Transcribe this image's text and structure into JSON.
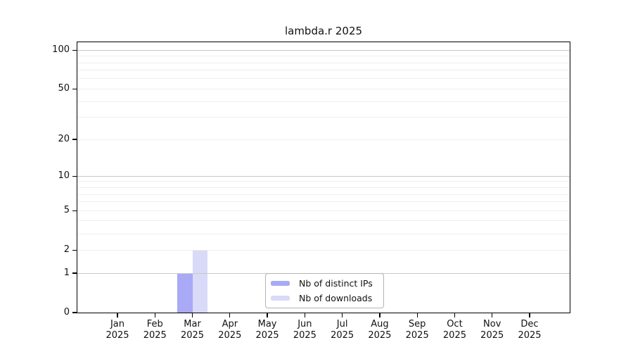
{
  "chart_data": {
    "type": "bar",
    "title": "lambda.r 2025",
    "categories": [
      "Jan 2025",
      "Feb 2025",
      "Mar 2025",
      "Apr 2025",
      "May 2025",
      "Jun 2025",
      "Jul 2025",
      "Aug 2025",
      "Sep 2025",
      "Oct 2025",
      "Nov 2025",
      "Dec 2025"
    ],
    "series": [
      {
        "name": "Nb of distinct IPs",
        "color": "#a9a9f5",
        "values": [
          0,
          0,
          1,
          0,
          0,
          0,
          0,
          0,
          0,
          0,
          0,
          0
        ]
      },
      {
        "name": "Nb of downloads",
        "color": "#d9d9f8",
        "values": [
          0,
          0,
          2,
          0,
          0,
          0,
          0,
          0,
          0,
          0,
          0,
          0
        ]
      }
    ],
    "xlabel": "",
    "ylabel": "",
    "yscale": "log1p",
    "ylim": [
      0,
      115
    ],
    "yticks": [
      0,
      1,
      2,
      5,
      10,
      20,
      50,
      100
    ],
    "gridline_values": [
      2,
      3,
      4,
      5,
      6,
      7,
      8,
      9,
      10,
      20,
      30,
      40,
      50,
      60,
      70,
      80,
      90,
      100,
      1
    ],
    "major_gridlines": [
      1,
      10,
      100
    ],
    "grid": true,
    "legend_position": "lower center"
  },
  "colors": {
    "axis": "#000000",
    "grid_major": "#c9c9c9",
    "grid_minor": "#eeeeee",
    "text": "#111111",
    "legend_border": "#b3b3b3"
  }
}
